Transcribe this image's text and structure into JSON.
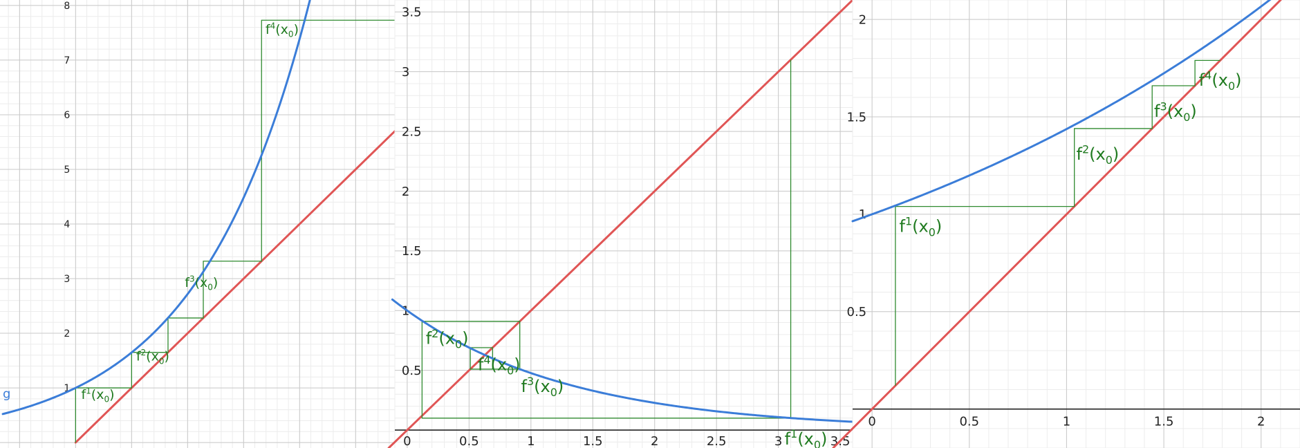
{
  "colors": {
    "curve": "#3b7dd8",
    "diagonal": "#e05555",
    "cobweb": "#2f8a2f",
    "label": "#1f7a1f",
    "major_grid": "#c9c9c9",
    "minor_grid": "#ececec",
    "axis": "#222222"
  },
  "chart_data": [
    {
      "type": "line",
      "title": "",
      "xlabel": "",
      "ylabel": "",
      "grid": true,
      "xlim": [
        -1.35,
        5.7
      ],
      "ylim": [
        -0.1,
        8.1
      ],
      "xticks": [],
      "yticks": [
        1,
        2,
        3,
        4,
        5,
        6,
        7,
        8
      ],
      "xtick_labels": [],
      "ytick_labels": [
        "1",
        "2",
        "3",
        "4",
        "5",
        "6",
        "7",
        "8"
      ],
      "show_x_axis": false,
      "show_y_axis": false,
      "curve_label": "g",
      "curve_label_point": [
        -1.3,
        0.82
      ],
      "curve": {
        "function": "exp",
        "a": 0.5,
        "x_from": -1.3,
        "x_to": 5.7
      },
      "diagonal": {
        "x_from": 0,
        "x_to": 5.7
      },
      "cobweb": [
        [
          0,
          0
        ],
        [
          0,
          1.0
        ],
        [
          1.0,
          1.0
        ],
        [
          1.0,
          1.65
        ],
        [
          1.65,
          1.65
        ],
        [
          1.65,
          2.28
        ],
        [
          2.28,
          2.28
        ],
        [
          2.28,
          3.32
        ],
        [
          3.32,
          3.32
        ],
        [
          3.32,
          7.73
        ],
        [
          5.7,
          7.73
        ]
      ],
      "iterate_labels": [
        {
          "base": "f",
          "sup": "1",
          "arg": "x",
          "sub": "0",
          "at": [
            0.1,
            0.8
          ]
        },
        {
          "base": "f",
          "sup": "2",
          "arg": "x",
          "sub": "0",
          "at": [
            1.08,
            1.5
          ]
        },
        {
          "base": "f",
          "sup": "3",
          "arg": "x",
          "sub": "0",
          "at": [
            1.95,
            2.85
          ]
        },
        {
          "base": "f",
          "sup": "4",
          "arg": "x",
          "sub": "0",
          "at": [
            3.39,
            7.48
          ]
        }
      ]
    },
    {
      "type": "line",
      "title": "",
      "xlabel": "",
      "ylabel": "",
      "grid": true,
      "xlim": [
        -0.1,
        3.6
      ],
      "ylim": [
        -0.15,
        3.6
      ],
      "xticks": [
        0,
        0.5,
        1,
        1.5,
        2,
        2.5,
        3,
        3.5
      ],
      "yticks": [
        0.5,
        1,
        1.5,
        2,
        2.5,
        3,
        3.5
      ],
      "xtick_labels": [
        "0",
        "0.5",
        "1",
        "1.5",
        "2",
        "2.5",
        "3",
        "3.5"
      ],
      "ytick_labels": [
        "0.5",
        "1",
        "1.5",
        "2",
        "2.5",
        "3",
        "3.5"
      ],
      "show_x_axis": true,
      "show_y_axis": false,
      "curve": {
        "function": "exp",
        "a": -0.74,
        "x_from": -0.12,
        "x_to": 3.6
      },
      "diagonal": {
        "x_from": -0.15,
        "x_to": 3.6
      },
      "cobweb": [
        [
          3.1,
          0.1
        ],
        [
          3.1,
          3.1
        ],
        [
          3.1,
          0.1
        ],
        [
          0.12,
          0.1
        ],
        [
          0.12,
          0.91
        ],
        [
          0.91,
          0.91
        ],
        [
          0.91,
          0.51
        ],
        [
          0.51,
          0.51
        ],
        [
          0.51,
          0.69
        ],
        [
          0.69,
          0.69
        ],
        [
          0.69,
          0.51
        ]
      ],
      "iterate_labels": [
        {
          "base": "f",
          "sup": "1",
          "arg": "x",
          "sub": "0",
          "at": [
            3.05,
            -0.12
          ]
        },
        {
          "base": "f",
          "sup": "2",
          "arg": "x",
          "sub": "0",
          "at": [
            0.15,
            0.72
          ]
        },
        {
          "base": "f",
          "sup": "3",
          "arg": "x",
          "sub": "0",
          "at": [
            0.92,
            0.32
          ]
        },
        {
          "base": "f",
          "sup": "4",
          "arg": "x",
          "sub": "0",
          "at": [
            0.57,
            0.5
          ]
        }
      ]
    },
    {
      "type": "line",
      "title": "",
      "xlabel": "",
      "ylabel": "",
      "grid": true,
      "xlim": [
        -0.1,
        2.2
      ],
      "ylim": [
        -0.2,
        2.1
      ],
      "xticks": [
        0,
        0.5,
        1,
        1.5,
        2
      ],
      "yticks": [
        0.5,
        1,
        1.5,
        2
      ],
      "xtick_labels": [
        "0",
        "0.5",
        "1",
        "1.5",
        "2"
      ],
      "ytick_labels": [
        "0.5",
        "1",
        "1.5",
        "2"
      ],
      "show_x_axis": true,
      "show_y_axis": false,
      "curve": {
        "function": "exp",
        "a": 0.363,
        "x_from": -0.1,
        "x_to": 2.2
      },
      "diagonal": {
        "x_from": -0.2,
        "x_to": 2.2
      },
      "cobweb": [
        [
          0.12,
          0.12
        ],
        [
          0.12,
          1.04
        ],
        [
          1.04,
          1.04
        ],
        [
          1.04,
          1.44
        ],
        [
          1.44,
          1.44
        ],
        [
          1.44,
          1.66
        ],
        [
          1.66,
          1.66
        ],
        [
          1.66,
          1.79
        ],
        [
          1.79,
          1.79
        ]
      ],
      "iterate_labels": [
        {
          "base": "f",
          "sup": "1",
          "arg": "x",
          "sub": "0",
          "at": [
            0.14,
            0.91
          ]
        },
        {
          "base": "f",
          "sup": "2",
          "arg": "x",
          "sub": "0",
          "at": [
            1.05,
            1.28
          ]
        },
        {
          "base": "f",
          "sup": "3",
          "arg": "x",
          "sub": "0",
          "at": [
            1.45,
            1.5
          ]
        },
        {
          "base": "f",
          "sup": "4",
          "arg": "x",
          "sub": "0",
          "at": [
            1.68,
            1.66
          ]
        }
      ]
    }
  ]
}
